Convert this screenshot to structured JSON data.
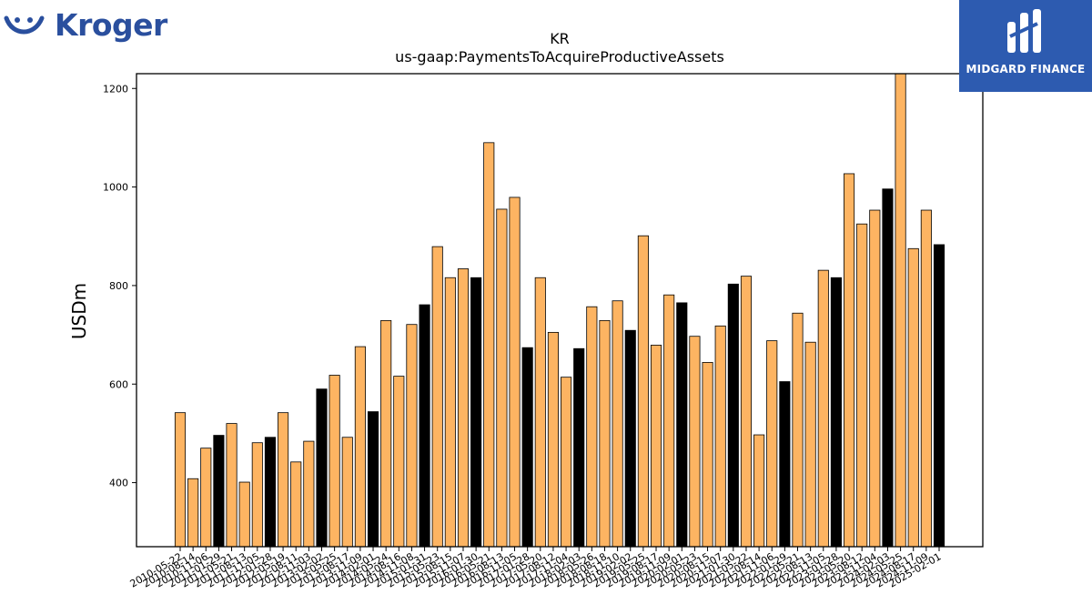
{
  "branding": {
    "left_logo_text": "Kroger",
    "right_logo_text": "MIDGARD FINANCE"
  },
  "colors": {
    "bar_primary": "#fdb462",
    "bar_alt": "#000000",
    "bar_edge": "#000000",
    "midgard_bg": "#2d5bb0",
    "kroger_blue": "#2a4f9e"
  },
  "chart_data": {
    "type": "bar",
    "title": "KR",
    "subtitle": "us-gaap:PaymentsToAcquireProductiveAssets",
    "xlabel": "",
    "ylabel": "USDm",
    "ylim": [
      270,
      1230
    ],
    "yticks": [
      400,
      600,
      800,
      1000,
      1200
    ],
    "grid": false,
    "legend": "none",
    "categories": [
      "2010-05-22",
      "2010-08-14",
      "2010-11-06",
      "2011-01-29",
      "2011-05-21",
      "2011-08-13",
      "2011-11-05",
      "2012-01-28",
      "2012-05-19",
      "2012-08-11",
      "2012-11-03",
      "2013-02-02",
      "2013-05-25",
      "2013-08-17",
      "2013-11-09",
      "2014-02-01",
      "2014-05-24",
      "2014-08-16",
      "2014-11-08",
      "2015-01-31",
      "2015-05-23",
      "2015-08-15",
      "2015-11-07",
      "2016-01-30",
      "2016-05-21",
      "2016-08-13",
      "2016-11-05",
      "2017-01-28",
      "2017-05-20",
      "2017-08-12",
      "2017-11-04",
      "2018-02-03",
      "2018-05-26",
      "2018-08-18",
      "2018-11-10",
      "2019-02-02",
      "2019-05-25",
      "2019-08-17",
      "2019-11-09",
      "2020-02-01",
      "2020-05-23",
      "2020-08-15",
      "2020-11-07",
      "2021-01-30",
      "2021-05-22",
      "2021-08-14",
      "2021-11-06",
      "2022-01-29",
      "2022-05-21",
      "2022-08-13",
      "2022-11-05",
      "2023-01-28",
      "2023-05-20",
      "2023-08-12",
      "2023-11-04",
      "2024-02-03",
      "2024-05-25",
      "2024-08-17",
      "2024-11-09",
      "2025-02-01"
    ],
    "tick_labels": [
      "2010-05-22",
      "2010-08-14",
      "2010-11-06",
      "2011-01-29",
      "2011-05-21",
      "2011-08-13",
      "2011-11-05",
      "2012-01-28",
      "2012-05-19",
      "2012-08-11",
      "2012-11-03",
      "2013-02-02",
      "2013-05-25",
      "2013-08-17",
      "2013-11-09",
      "2014-02-01",
      "2014-05-24",
      "2014-08-16",
      "2014-11-08",
      "2015-01-31",
      "2015-05-23",
      "2015-08-15",
      "2015-11-07",
      "2016-01-30",
      "2016-05-21",
      "2016-08-13",
      "2016-11-05",
      "2017-01-28",
      "2017-05-20",
      "2017-08-12",
      "2017-11-04",
      "2018-02-03",
      "2018-05-26",
      "2018-08-18",
      "2018-11-10",
      "2019-02-02",
      "2019-05-25",
      "2019-08-17",
      "2019-11-09",
      "2020-02-01",
      "2020-05-23",
      "2020-08-15",
      "2020-11-07",
      "2021-01-30",
      "2021-05-22",
      "2021-08-14",
      "2021-11-06",
      "2022-01-29",
      "2022-05-21",
      "2022-08-13",
      "2022-11-05",
      "2023-01-28",
      "2023-05-20",
      "2023-08-12",
      "2023-11-04",
      "2024-02-03",
      "2024-05-25",
      "2024-08-17",
      "2024-11-09",
      "2025-02-01"
    ],
    "values": [
      542,
      408,
      470,
      496,
      520,
      401,
      481,
      492,
      542,
      442,
      484,
      590,
      618,
      492,
      676,
      544,
      729,
      616,
      721,
      761,
      879,
      816,
      834,
      816,
      1090,
      955,
      979,
      674,
      816,
      705,
      614,
      672,
      757,
      729,
      769,
      709,
      901,
      679,
      781,
      765,
      697,
      644,
      718,
      803,
      819,
      497,
      688,
      605,
      744,
      685,
      831,
      816,
      1027,
      925,
      953,
      996,
      1240,
      875,
      953,
      883
    ],
    "highlight_indices": [
      3,
      7,
      11,
      15,
      19,
      23,
      27,
      31,
      35,
      39,
      43,
      47,
      51,
      55,
      59
    ]
  }
}
